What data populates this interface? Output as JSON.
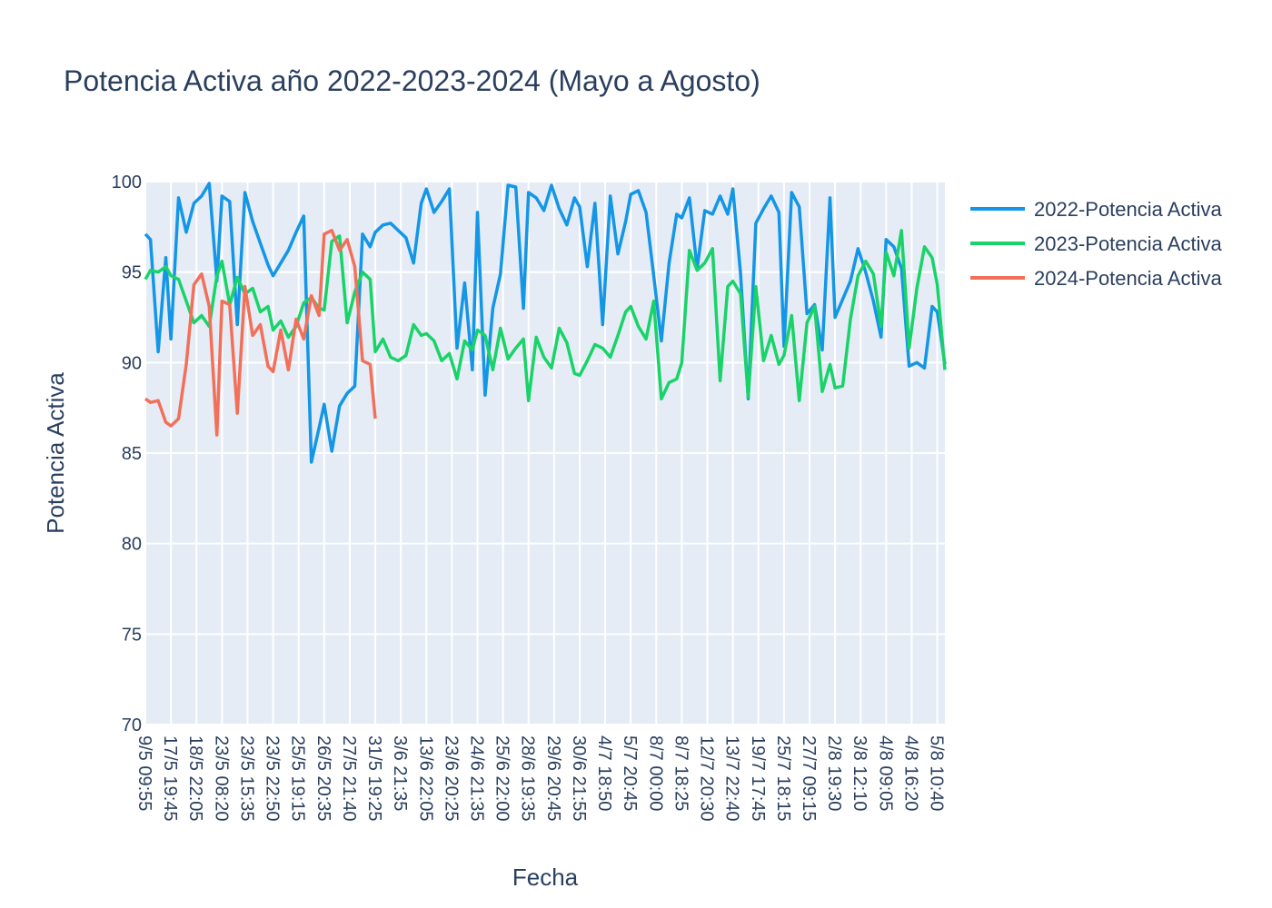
{
  "chart_data": {
    "type": "line",
    "title": "Potencia Activa año 2022-2023-2024 (Mayo a Agosto)",
    "xlabel": "Fecha",
    "ylabel": "Potencia Activa",
    "ylim": [
      70,
      100
    ],
    "y_ticks": [
      70,
      75,
      80,
      85,
      90,
      95,
      100
    ],
    "grid": true,
    "legend_position": "right",
    "x_ticks": [
      "9/5 09:55",
      "17/5 19:45",
      "18/5 22:05",
      "23/5 08:20",
      "23/5 15:35",
      "23/5 22:50",
      "25/5 19:15",
      "26/5 20:35",
      "27/5 21:40",
      "31/5 19:25",
      "3/6 21:35",
      "13/6 22:05",
      "23/6 20:25",
      "24/6 21:35",
      "25/6 22:00",
      "28/6 19:35",
      "29/6 20:45",
      "30/6 21:55",
      "4/7 18:50",
      "5/7 20:45",
      "8/7 00:00",
      "8/7 18:25",
      "12/7 20:30",
      "13/7 22:40",
      "19/7 17:45",
      "25/7 18:15",
      "27/7 09:15",
      "2/8 19:30",
      "3/8 12:10",
      "4/8 09:05",
      "4/8 16:20",
      "5/8 10:40"
    ],
    "series": [
      {
        "name": "2022-Potencia Activa",
        "color": "#1496e6",
        "x": [
          0,
          0.2,
          0.5,
          0.8,
          1.0,
          1.3,
          1.6,
          1.9,
          2.2,
          2.5,
          2.8,
          3.0,
          3.3,
          3.6,
          3.9,
          4.2,
          4.5,
          4.8,
          5.0,
          5.3,
          5.6,
          5.9,
          6.2,
          6.5,
          6.8,
          7.0,
          7.3,
          7.6,
          7.9,
          8.2,
          8.5,
          8.8,
          9.0,
          9.3,
          9.6,
          9.9,
          10.2,
          10.5,
          10.8,
          11.0,
          11.3,
          11.6,
          11.9,
          12.2,
          12.5,
          12.8,
          13.0,
          13.3,
          13.6,
          13.9,
          14.2,
          14.5,
          14.8,
          15.0,
          15.3,
          15.6,
          15.9,
          16.2,
          16.5,
          16.8,
          17.0,
          17.3,
          17.6,
          17.9,
          18.2,
          18.5,
          18.8,
          19.0,
          19.3,
          19.6,
          19.9,
          20.2,
          20.5,
          20.8,
          21.0,
          21.3,
          21.6,
          21.9,
          22.2,
          22.5,
          22.8,
          23.0,
          23.3,
          23.6,
          23.9,
          24.2,
          24.5,
          24.8,
          25.0,
          25.3,
          25.6,
          25.9,
          26.2,
          26.5,
          26.8,
          27.0,
          27.3,
          27.6,
          27.9,
          28.2,
          28.5,
          28.8,
          29.0,
          29.3,
          29.6,
          29.9,
          30.2,
          30.5,
          30.8,
          31.0,
          31.3
        ],
        "y": [
          97.1,
          96.8,
          90.6,
          95.8,
          91.3,
          99.1,
          97.2,
          98.8,
          99.2,
          99.9,
          94.5,
          99.2,
          98.9,
          92.1,
          99.4,
          97.8,
          96.6,
          95.4,
          94.8,
          95.5,
          96.2,
          97.2,
          98.1,
          84.5,
          86.4,
          87.7,
          85.1,
          87.6,
          88.3,
          88.7,
          97.1,
          96.4,
          97.2,
          97.6,
          97.7,
          97.3,
          96.9,
          95.5,
          98.8,
          99.6,
          98.3,
          98.9,
          99.6,
          90.8,
          94.4,
          89.6,
          98.3,
          88.2,
          93.0,
          94.9,
          99.8,
          99.7,
          93.0,
          99.4,
          99.1,
          98.4,
          99.8,
          98.5,
          97.6,
          99.1,
          98.6,
          95.3,
          98.8,
          92.1,
          99.2,
          96.0,
          97.8,
          99.3,
          99.5,
          98.3,
          94.8,
          91.2,
          95.5,
          98.2,
          98.0,
          99.1,
          95.2,
          98.4,
          98.2,
          99.2,
          98.2,
          99.6,
          94.9,
          88.0,
          97.7,
          98.5,
          99.2,
          98.3,
          90.9,
          99.4,
          98.6,
          92.7,
          93.2,
          90.7,
          99.1,
          92.5,
          93.5,
          94.5,
          96.3,
          95.0,
          93.4,
          91.4,
          96.8,
          96.4,
          95.2,
          89.8,
          90.0,
          89.7,
          93.1,
          92.8,
          89.9
        ]
      },
      {
        "name": "2023-Potencia Activa",
        "color": "#19d369",
        "x": [
          0,
          0.2,
          0.5,
          0.8,
          1.0,
          1.3,
          1.6,
          1.9,
          2.2,
          2.5,
          2.8,
          3.0,
          3.3,
          3.6,
          3.9,
          4.2,
          4.5,
          4.8,
          5.0,
          5.3,
          5.6,
          5.9,
          6.2,
          6.5,
          6.8,
          7.0,
          7.3,
          7.6,
          7.9,
          8.2,
          8.5,
          8.8,
          9.0,
          9.3,
          9.6,
          9.9,
          10.2,
          10.5,
          10.8,
          11.0,
          11.3,
          11.6,
          11.9,
          12.2,
          12.5,
          12.8,
          13.0,
          13.3,
          13.6,
          13.9,
          14.2,
          14.5,
          14.8,
          15.0,
          15.3,
          15.6,
          15.9,
          16.2,
          16.5,
          16.8,
          17.0,
          17.3,
          17.6,
          17.9,
          18.2,
          18.5,
          18.8,
          19.0,
          19.3,
          19.6,
          19.9,
          20.2,
          20.5,
          20.8,
          21.0,
          21.3,
          21.6,
          21.9,
          22.2,
          22.5,
          22.8,
          23.0,
          23.3,
          23.6,
          23.9,
          24.2,
          24.5,
          24.8,
          25.0,
          25.3,
          25.6,
          25.9,
          26.2,
          26.5,
          26.8,
          27.0,
          27.3,
          27.6,
          27.9,
          28.2,
          28.5,
          28.8,
          29.0,
          29.3,
          29.6,
          29.9,
          30.2,
          30.5,
          30.8,
          31.0,
          31.3
        ],
        "y": [
          94.6,
          95.1,
          95.0,
          95.3,
          94.8,
          94.6,
          93.4,
          92.2,
          92.6,
          92.0,
          94.8,
          95.6,
          93.2,
          94.7,
          93.8,
          94.1,
          92.8,
          93.1,
          91.8,
          92.3,
          91.4,
          92.0,
          93.3,
          93.6,
          93.0,
          92.9,
          96.7,
          97.0,
          92.2,
          93.9,
          95.0,
          94.6,
          90.6,
          91.3,
          90.3,
          90.1,
          90.4,
          92.1,
          91.5,
          91.6,
          91.2,
          90.1,
          90.5,
          89.1,
          91.2,
          90.7,
          91.8,
          91.5,
          89.6,
          91.9,
          90.2,
          90.8,
          91.3,
          87.9,
          91.4,
          90.3,
          89.7,
          91.9,
          91.1,
          89.4,
          89.3,
          90.1,
          91.0,
          90.8,
          90.3,
          91.5,
          92.8,
          93.1,
          92.0,
          91.3,
          93.4,
          88.0,
          88.9,
          89.1,
          90.0,
          96.2,
          95.1,
          95.5,
          96.3,
          89.0,
          94.2,
          94.5,
          93.8,
          88.1,
          94.2,
          90.1,
          91.5,
          89.9,
          90.4,
          92.6,
          87.9,
          92.2,
          93.1,
          88.4,
          89.9,
          88.6,
          88.7,
          92.4,
          94.8,
          95.6,
          94.9,
          92.0,
          96.1,
          94.8,
          97.3,
          90.8,
          94.1,
          96.4,
          95.8,
          94.3,
          89.6
        ]
      },
      {
        "name": "2024-Potencia Activa",
        "color": "#f27059",
        "x": [
          0,
          0.2,
          0.5,
          0.8,
          1.0,
          1.3,
          1.6,
          1.9,
          2.2,
          2.5,
          2.8,
          3.0,
          3.3,
          3.6,
          3.9,
          4.2,
          4.5,
          4.8,
          5.0,
          5.3,
          5.6,
          5.9,
          6.2,
          6.5,
          6.8,
          7.0,
          7.3,
          7.6,
          7.9,
          8.2,
          8.5,
          8.8,
          9.0
        ],
        "y": [
          88.0,
          87.8,
          87.9,
          86.7,
          86.5,
          86.9,
          89.9,
          94.3,
          94.9,
          93.1,
          86.0,
          93.4,
          93.2,
          87.2,
          94.2,
          91.5,
          92.1,
          89.8,
          89.5,
          91.8,
          89.6,
          92.4,
          91.3,
          93.7,
          92.6,
          97.1,
          97.3,
          96.2,
          96.8,
          95.3,
          90.1,
          89.9,
          86.9
        ]
      }
    ]
  }
}
